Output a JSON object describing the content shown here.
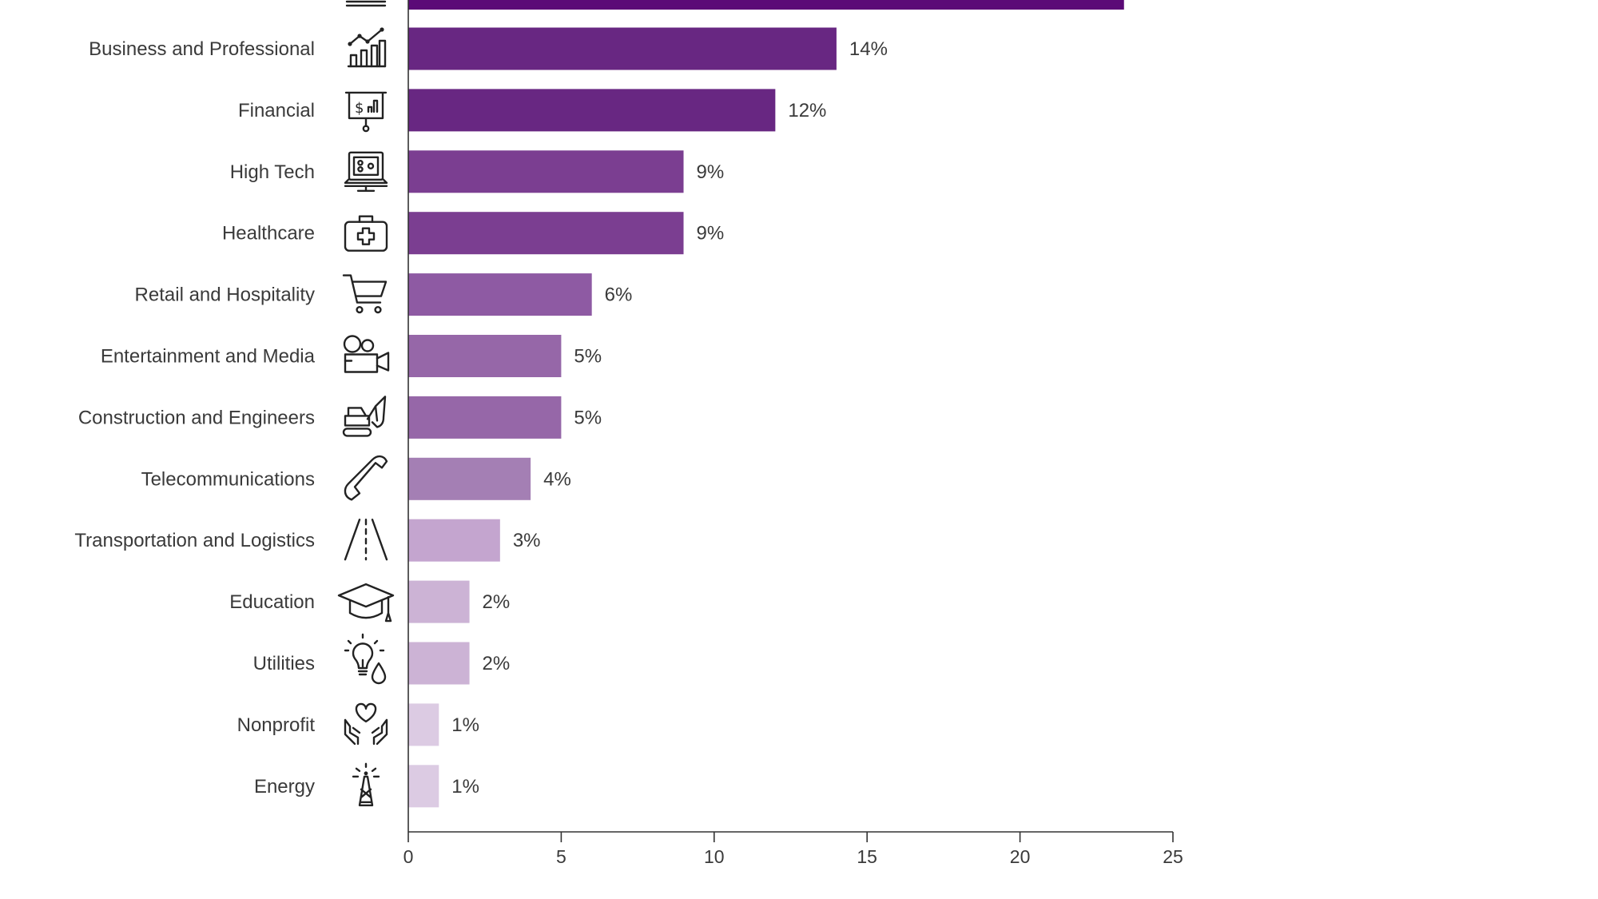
{
  "chart_data": {
    "type": "bar",
    "orientation": "horizontal",
    "title": "",
    "xlabel": "",
    "ylabel": "",
    "xlim": [
      0,
      25
    ],
    "ticks": [
      "0",
      "5",
      "10",
      "15",
      "20",
      "25"
    ],
    "grid": false,
    "categories": [
      "Business and Professional",
      "Financial",
      "High Tech",
      "Healthcare",
      "Retail and Hospitality",
      "Entertainment and Media",
      "Construction and Engineers",
      "Telecommunications",
      "Transportation and Logistics",
      "Education",
      "Utilities",
      "Nonprofit",
      "Energy"
    ],
    "values": [
      14,
      12,
      9,
      9,
      6,
      5,
      5,
      4,
      3,
      2,
      2,
      1,
      1
    ],
    "value_labels": [
      "14%",
      "12%",
      "9%",
      "9%",
      "6%",
      "5%",
      "5%",
      "4%",
      "3%",
      "2%",
      "2%",
      "1%",
      "1%"
    ],
    "icons": [
      "line-chart-icon",
      "presentation-board-icon",
      "computer-icon",
      "first-aid-kit-icon",
      "shopping-cart-icon",
      "video-camera-icon",
      "excavator-icon",
      "telephone-handset-icon",
      "road-icon",
      "graduation-cap-icon",
      "lightbulb-water-drop-icon",
      "hands-heart-icon",
      "power-tower-icon"
    ],
    "colors": [
      "#682782",
      "#682782",
      "#7b3e91",
      "#7b3e91",
      "#8e5aa3",
      "#9667a8",
      "#9667a8",
      "#a47fb4",
      "#c4a5cf",
      "#ccb3d5",
      "#ccb3d5",
      "#dccbe3",
      "#dccbe3"
    ],
    "partial_top_bar": {
      "value": 23.4,
      "color": "#5b0a77",
      "icon": "partial-icon"
    }
  }
}
